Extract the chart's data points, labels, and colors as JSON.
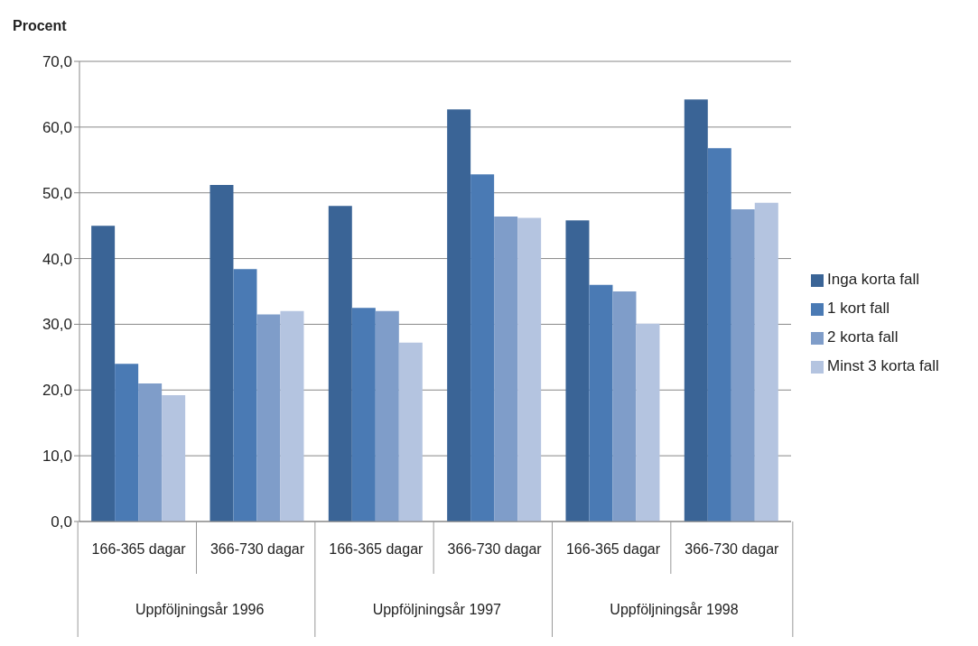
{
  "chart_data": {
    "type": "bar",
    "ylabel": "Procent",
    "categories": [
      "166-365 dagar",
      "366-730 dagar",
      "166-365 dagar",
      "366-730 dagar",
      "166-365 dagar",
      "366-730 dagar"
    ],
    "annotations": [
      "Uppföljningsår 1996",
      "Uppföljningsår 1997",
      "Uppföljningsår 1998"
    ],
    "series": [
      {
        "name": "Inga korta fall",
        "color": "#3a6496",
        "values": [
          45.0,
          51.2,
          48.0,
          62.7,
          45.8,
          64.2
        ]
      },
      {
        "name": "1 kort fall",
        "color": "#4a7ab4",
        "values": [
          24.0,
          38.4,
          32.5,
          52.8,
          36.0,
          56.8
        ]
      },
      {
        "name": "2 korta fall",
        "color": "#7f9dc9",
        "values": [
          21.0,
          31.5,
          32.0,
          46.4,
          35.0,
          47.5
        ]
      },
      {
        "name": "Minst 3 korta fall",
        "color": "#b4c4e0",
        "values": [
          19.2,
          32.0,
          27.2,
          46.2,
          30.1,
          48.5
        ]
      }
    ],
    "ylim": [
      0,
      70
    ],
    "yticks": [
      {
        "value": 0,
        "label": "0,0"
      },
      {
        "value": 10,
        "label": "10,0"
      },
      {
        "value": 20,
        "label": "20,0"
      },
      {
        "value": 30,
        "label": "30,0"
      },
      {
        "value": 40,
        "label": "40,0"
      },
      {
        "value": 50,
        "label": "50,0"
      },
      {
        "value": 60,
        "label": "60,0"
      },
      {
        "value": 70,
        "label": "70,0"
      }
    ],
    "grid": "y",
    "legend": "right"
  }
}
